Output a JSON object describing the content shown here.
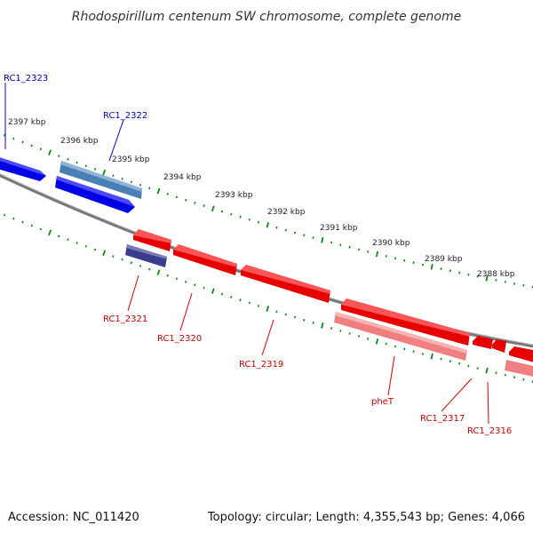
{
  "title": "Rhodospirillum centenum SW chromosome, complete genome",
  "footer": {
    "accession": "Accession: NC_011420",
    "summary": "Topology: circular; Length: 4,355,543 bp; Genes: 4,066"
  },
  "colors": {
    "forward_gene": "#0000ff",
    "forward_gene_alt": "#4a7fb5",
    "reverse_gene": "#ff0000",
    "reverse_gene_alt": "#f08080",
    "rna_gene": "#3c3c8c",
    "backbone": "#777777",
    "ticks": "#0a8a0a"
  },
  "scale_labels": [
    "2397 kbp",
    "2396 kbp",
    "2395 kbp",
    "2394 kbp",
    "2393 kbp",
    "2392 kbp",
    "2391 kbp",
    "2390 kbp",
    "2389 kbp",
    "2388 kbp"
  ],
  "forward_genes": [
    {
      "label": "RC1_2323"
    },
    {
      "label": "RC1_2322"
    }
  ],
  "reverse_genes": [
    {
      "label": "RC1_2321"
    },
    {
      "label": "RC1_2320"
    },
    {
      "label": "RC1_2319"
    },
    {
      "label": "pheT"
    },
    {
      "label": "RC1_2317"
    },
    {
      "label": "RC1_2316"
    }
  ]
}
